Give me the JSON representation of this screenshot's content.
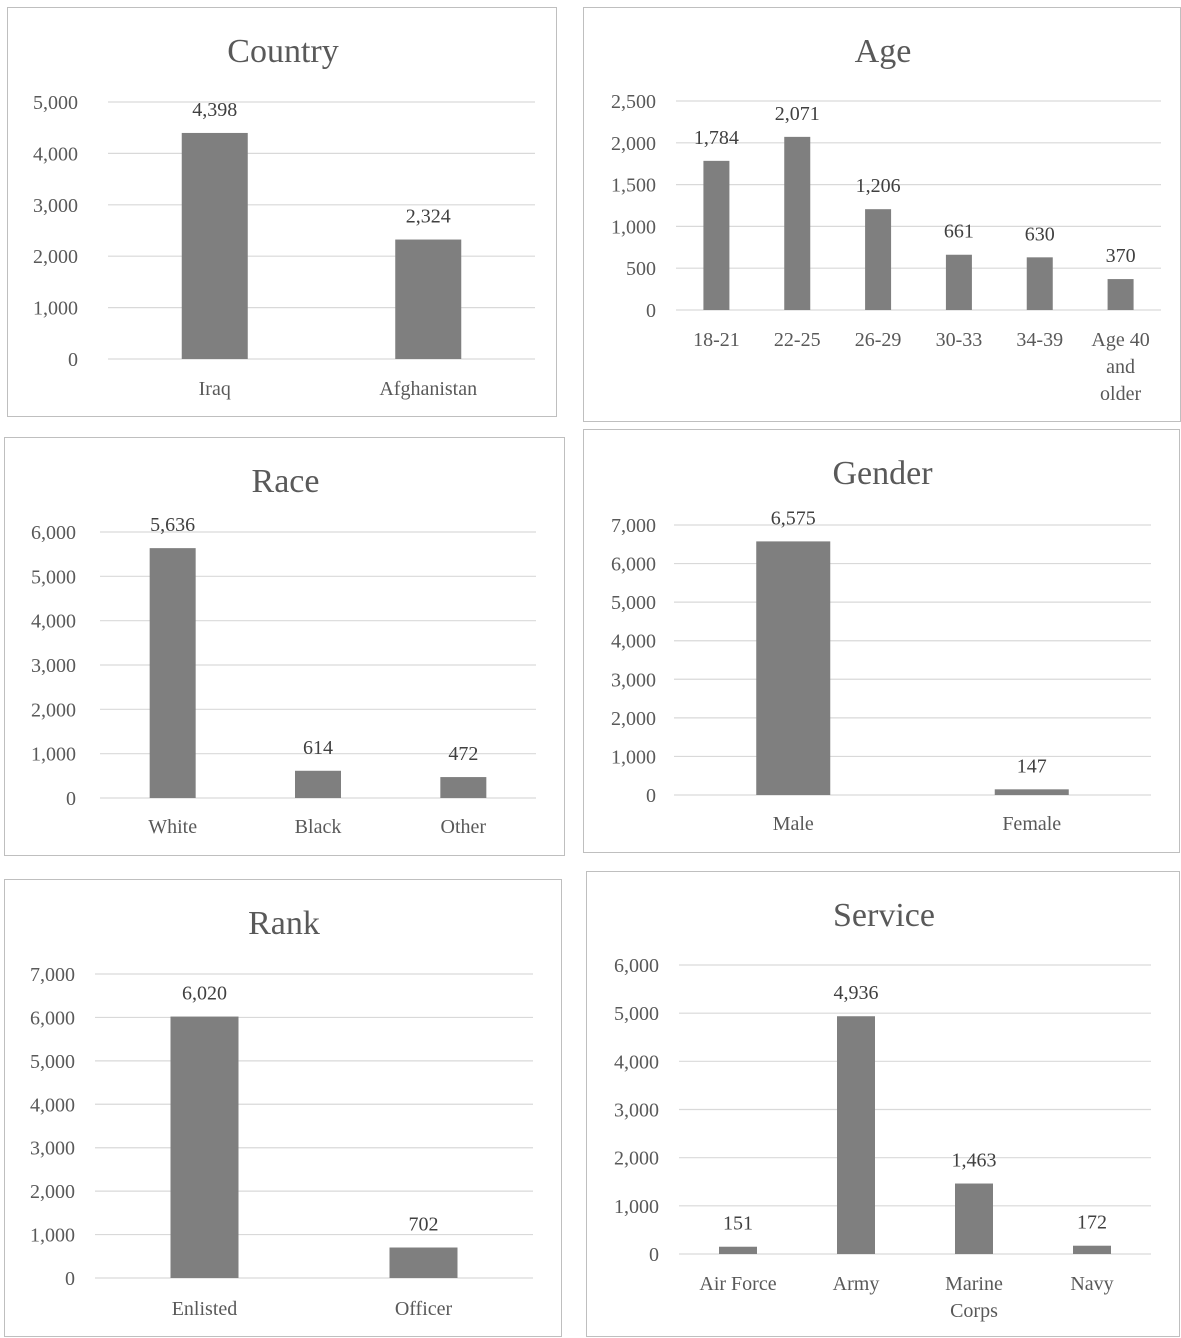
{
  "chart_data": [
    {
      "id": "country",
      "type": "bar",
      "title": "Country",
      "categories": [
        [
          "Iraq"
        ],
        [
          "Afghanistan"
        ]
      ],
      "values": [
        4398,
        2324
      ],
      "value_labels": [
        "4,398",
        "2,324"
      ],
      "yticks": [
        "0",
        "1,000",
        "2,000",
        "3,000",
        "4,000",
        "5,000"
      ],
      "ylim": [
        0,
        5000
      ],
      "grid": true,
      "color": "#7f7f7f"
    },
    {
      "id": "age",
      "type": "bar",
      "title": "Age",
      "categories": [
        [
          "18-21"
        ],
        [
          "22-25"
        ],
        [
          "26-29"
        ],
        [
          "30-33"
        ],
        [
          "34-39"
        ],
        [
          "Age 40",
          "and",
          "older"
        ]
      ],
      "values": [
        1784,
        2071,
        1206,
        661,
        630,
        370
      ],
      "value_labels": [
        "1,784",
        "2,071",
        "1,206",
        "661",
        "630",
        "370"
      ],
      "yticks": [
        "0",
        "500",
        "1,000",
        "1,500",
        "2,000",
        "2,500"
      ],
      "ylim": [
        0,
        2500
      ],
      "grid": true,
      "color": "#7f7f7f"
    },
    {
      "id": "race",
      "type": "bar",
      "title": "Race",
      "categories": [
        [
          "White"
        ],
        [
          "Black"
        ],
        [
          "Other"
        ]
      ],
      "values": [
        5636,
        614,
        472
      ],
      "value_labels": [
        "5,636",
        "614",
        "472"
      ],
      "yticks": [
        "0",
        "1,000",
        "2,000",
        "3,000",
        "4,000",
        "5,000",
        "6,000"
      ],
      "ylim": [
        0,
        6000
      ],
      "grid": true,
      "color": "#7f7f7f"
    },
    {
      "id": "gender",
      "type": "bar",
      "title": "Gender",
      "categories": [
        [
          "Male"
        ],
        [
          "Female"
        ]
      ],
      "values": [
        6575,
        147
      ],
      "value_labels": [
        "6,575",
        "147"
      ],
      "yticks": [
        "0",
        "1,000",
        "2,000",
        "3,000",
        "4,000",
        "5,000",
        "6,000",
        "7,000"
      ],
      "ylim": [
        0,
        7000
      ],
      "grid": true,
      "color": "#7f7f7f"
    },
    {
      "id": "rank",
      "type": "bar",
      "title": "Rank",
      "categories": [
        [
          "Enlisted"
        ],
        [
          "Officer"
        ]
      ],
      "values": [
        6020,
        702
      ],
      "value_labels": [
        "6,020",
        "702"
      ],
      "yticks": [
        "0",
        "1,000",
        "2,000",
        "3,000",
        "4,000",
        "5,000",
        "6,000",
        "7,000"
      ],
      "ylim": [
        0,
        7000
      ],
      "grid": true,
      "color": "#7f7f7f"
    },
    {
      "id": "service",
      "type": "bar",
      "title": "Service",
      "categories": [
        [
          "Air Force"
        ],
        [
          "Army"
        ],
        [
          "Marine",
          "Corps"
        ],
        [
          "Navy"
        ]
      ],
      "values": [
        151,
        4936,
        1463,
        172
      ],
      "value_labels": [
        "151",
        "4,936",
        "1,463",
        "172"
      ],
      "yticks": [
        "0",
        "1,000",
        "2,000",
        "3,000",
        "4,000",
        "5,000",
        "6,000"
      ],
      "ylim": [
        0,
        6000
      ],
      "grid": true,
      "color": "#7f7f7f"
    }
  ]
}
